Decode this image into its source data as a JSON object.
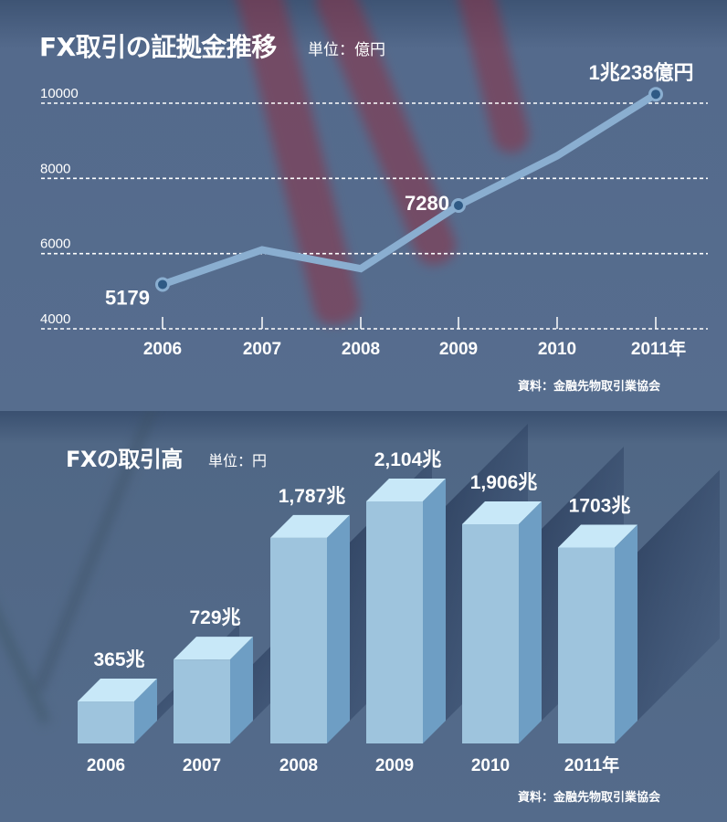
{
  "top_chart": {
    "title": "FX取引の証拠金推移",
    "unit": "単位：億円",
    "source": "資料：金融先物取引業協会"
  },
  "bottom_chart": {
    "title": "FXの取引高",
    "unit": "単位：円",
    "source": "資料：金融先物取引業協会"
  },
  "chart_data": [
    {
      "type": "line",
      "title": "FX取引の証拠金推移",
      "subtitle": "単位：億円",
      "categories": [
        "2006",
        "2007",
        "2008",
        "2009",
        "2010",
        "2011年"
      ],
      "values": [
        5179,
        6100,
        5600,
        7280,
        8600,
        10238
      ],
      "data_labels": [
        "5179",
        "",
        "",
        "7280",
        "",
        "1兆238億円"
      ],
      "yticks": [
        "4000",
        "6000",
        "8000",
        "10000"
      ],
      "ylim": [
        4000,
        10000
      ],
      "grid": true,
      "line_color": "#8aaed0",
      "marker_color": "#2f5a85",
      "source": "資料：金融先物取引業協会"
    },
    {
      "type": "bar",
      "title": "FXの取引高",
      "subtitle": "単位：円",
      "categories": [
        "2006",
        "2007",
        "2008",
        "2009",
        "2010",
        "2011年"
      ],
      "values": [
        365,
        729,
        1787,
        2104,
        1906,
        1703
      ],
      "data_labels": [
        "365兆",
        "729兆",
        "1,787兆",
        "2,104兆",
        "1,906兆",
        "1703兆"
      ],
      "unit": "兆円",
      "style": "3d",
      "bar_colors": {
        "front": "#9ec4dd",
        "top": "#c8e8f8",
        "side": "#6e9ec4"
      },
      "source": "資料：金融先物取引業協会"
    }
  ]
}
